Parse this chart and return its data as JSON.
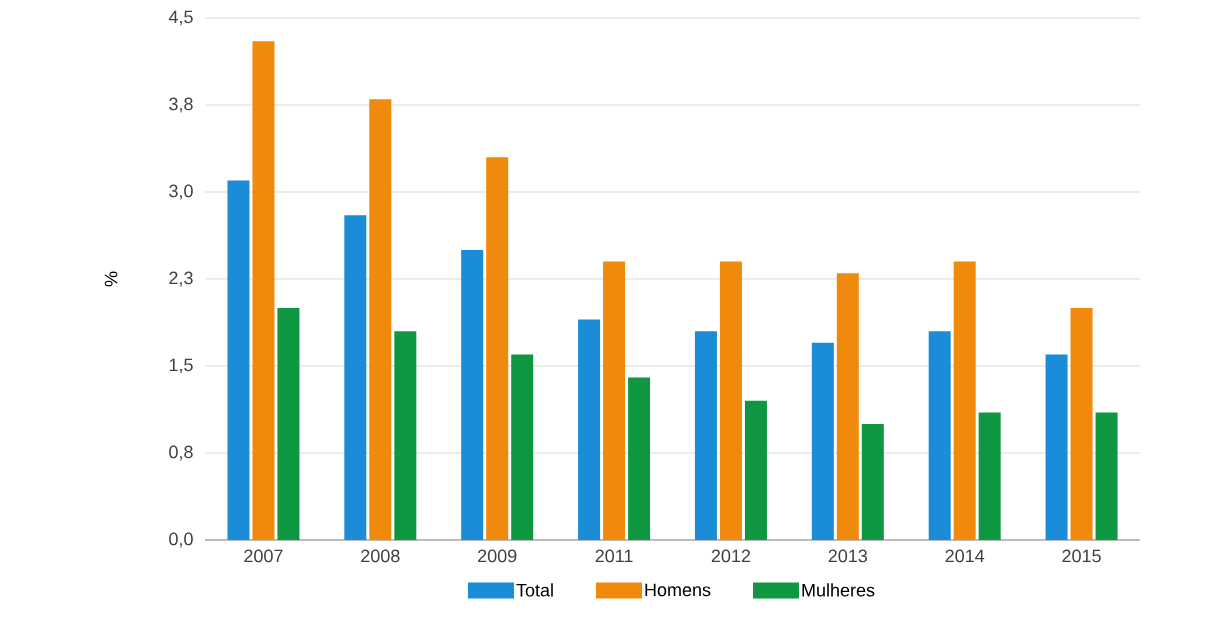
{
  "chart_data": {
    "type": "bar",
    "ylabel": "%",
    "categories": [
      "2007",
      "2008",
      "2009",
      "2011",
      "2012",
      "2013",
      "2014",
      "2015"
    ],
    "series": [
      {
        "name": "Total",
        "color": "#1a8cd8",
        "values": [
          3.1,
          2.8,
          2.5,
          1.9,
          1.8,
          1.7,
          1.8,
          1.6
        ]
      },
      {
        "name": "Homens",
        "color": "#f08a0c",
        "values": [
          4.3,
          3.8,
          3.3,
          2.4,
          2.4,
          2.3,
          2.4,
          2.0
        ]
      },
      {
        "name": "Mulheres",
        "color": "#0f9640",
        "values": [
          2.0,
          1.8,
          1.6,
          1.4,
          1.2,
          1.0,
          1.1,
          1.1
        ]
      }
    ],
    "ylim": [
      0,
      4.5
    ],
    "yticks": [
      {
        "value": 0,
        "label": "0,0"
      },
      {
        "value": 0.75,
        "label": "0,8"
      },
      {
        "value": 1.5,
        "label": "1,5"
      },
      {
        "value": 2.25,
        "label": "2,3"
      },
      {
        "value": 3.0,
        "label": "3,0"
      },
      {
        "value": 3.75,
        "label": "3,8"
      },
      {
        "value": 4.5,
        "label": "4,5"
      }
    ],
    "grid": "y",
    "legend": "bottom"
  }
}
